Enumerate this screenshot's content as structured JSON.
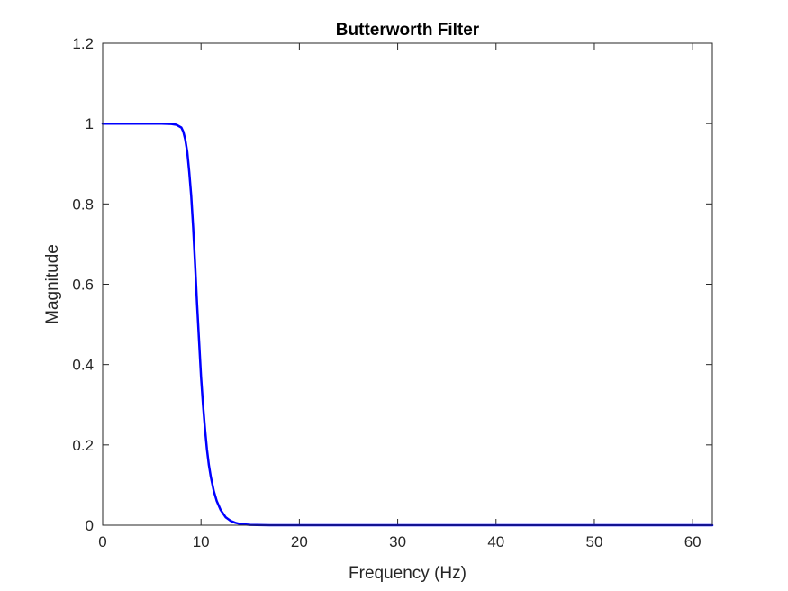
{
  "chart_data": {
    "type": "line",
    "title": "Butterworth Filter",
    "xlabel": "Frequency (Hz)",
    "ylabel": "Magnitude",
    "xlim": [
      0,
      62
    ],
    "ylim": [
      0,
      1.2
    ],
    "xticks": [
      0,
      10,
      20,
      30,
      40,
      50,
      60
    ],
    "yticks": [
      0,
      0.2,
      0.4,
      0.6,
      0.8,
      1,
      1.2
    ],
    "xtick_labels": [
      "0",
      "10",
      "20",
      "30",
      "40",
      "50",
      "60"
    ],
    "ytick_labels": [
      "0",
      "0.2",
      "0.4",
      "0.6",
      "0.8",
      "1",
      "1.2"
    ],
    "grid": false,
    "series": [
      {
        "color": "#0000ff",
        "x": [
          0,
          2,
          4,
          6,
          7,
          7.5,
          8,
          8.2,
          8.4,
          8.6,
          8.8,
          9.0,
          9.2,
          9.4,
          9.6,
          9.8,
          10.0,
          10.2,
          10.4,
          10.6,
          10.8,
          11.0,
          11.3,
          11.6,
          12.0,
          12.5,
          13.0,
          13.5,
          14.0,
          15.0,
          17.0,
          20.0,
          30.0,
          40.0,
          50.0,
          62.0
        ],
        "y": [
          1.0,
          1.0,
          1.0,
          1.0,
          0.999,
          0.997,
          0.99,
          0.98,
          0.96,
          0.93,
          0.88,
          0.82,
          0.74,
          0.65,
          0.55,
          0.46,
          0.37,
          0.3,
          0.24,
          0.19,
          0.15,
          0.12,
          0.085,
          0.06,
          0.038,
          0.02,
          0.011,
          0.006,
          0.003,
          0.001,
          0.0,
          0.0,
          0.0,
          0.0,
          0.0,
          0.0
        ]
      }
    ]
  }
}
